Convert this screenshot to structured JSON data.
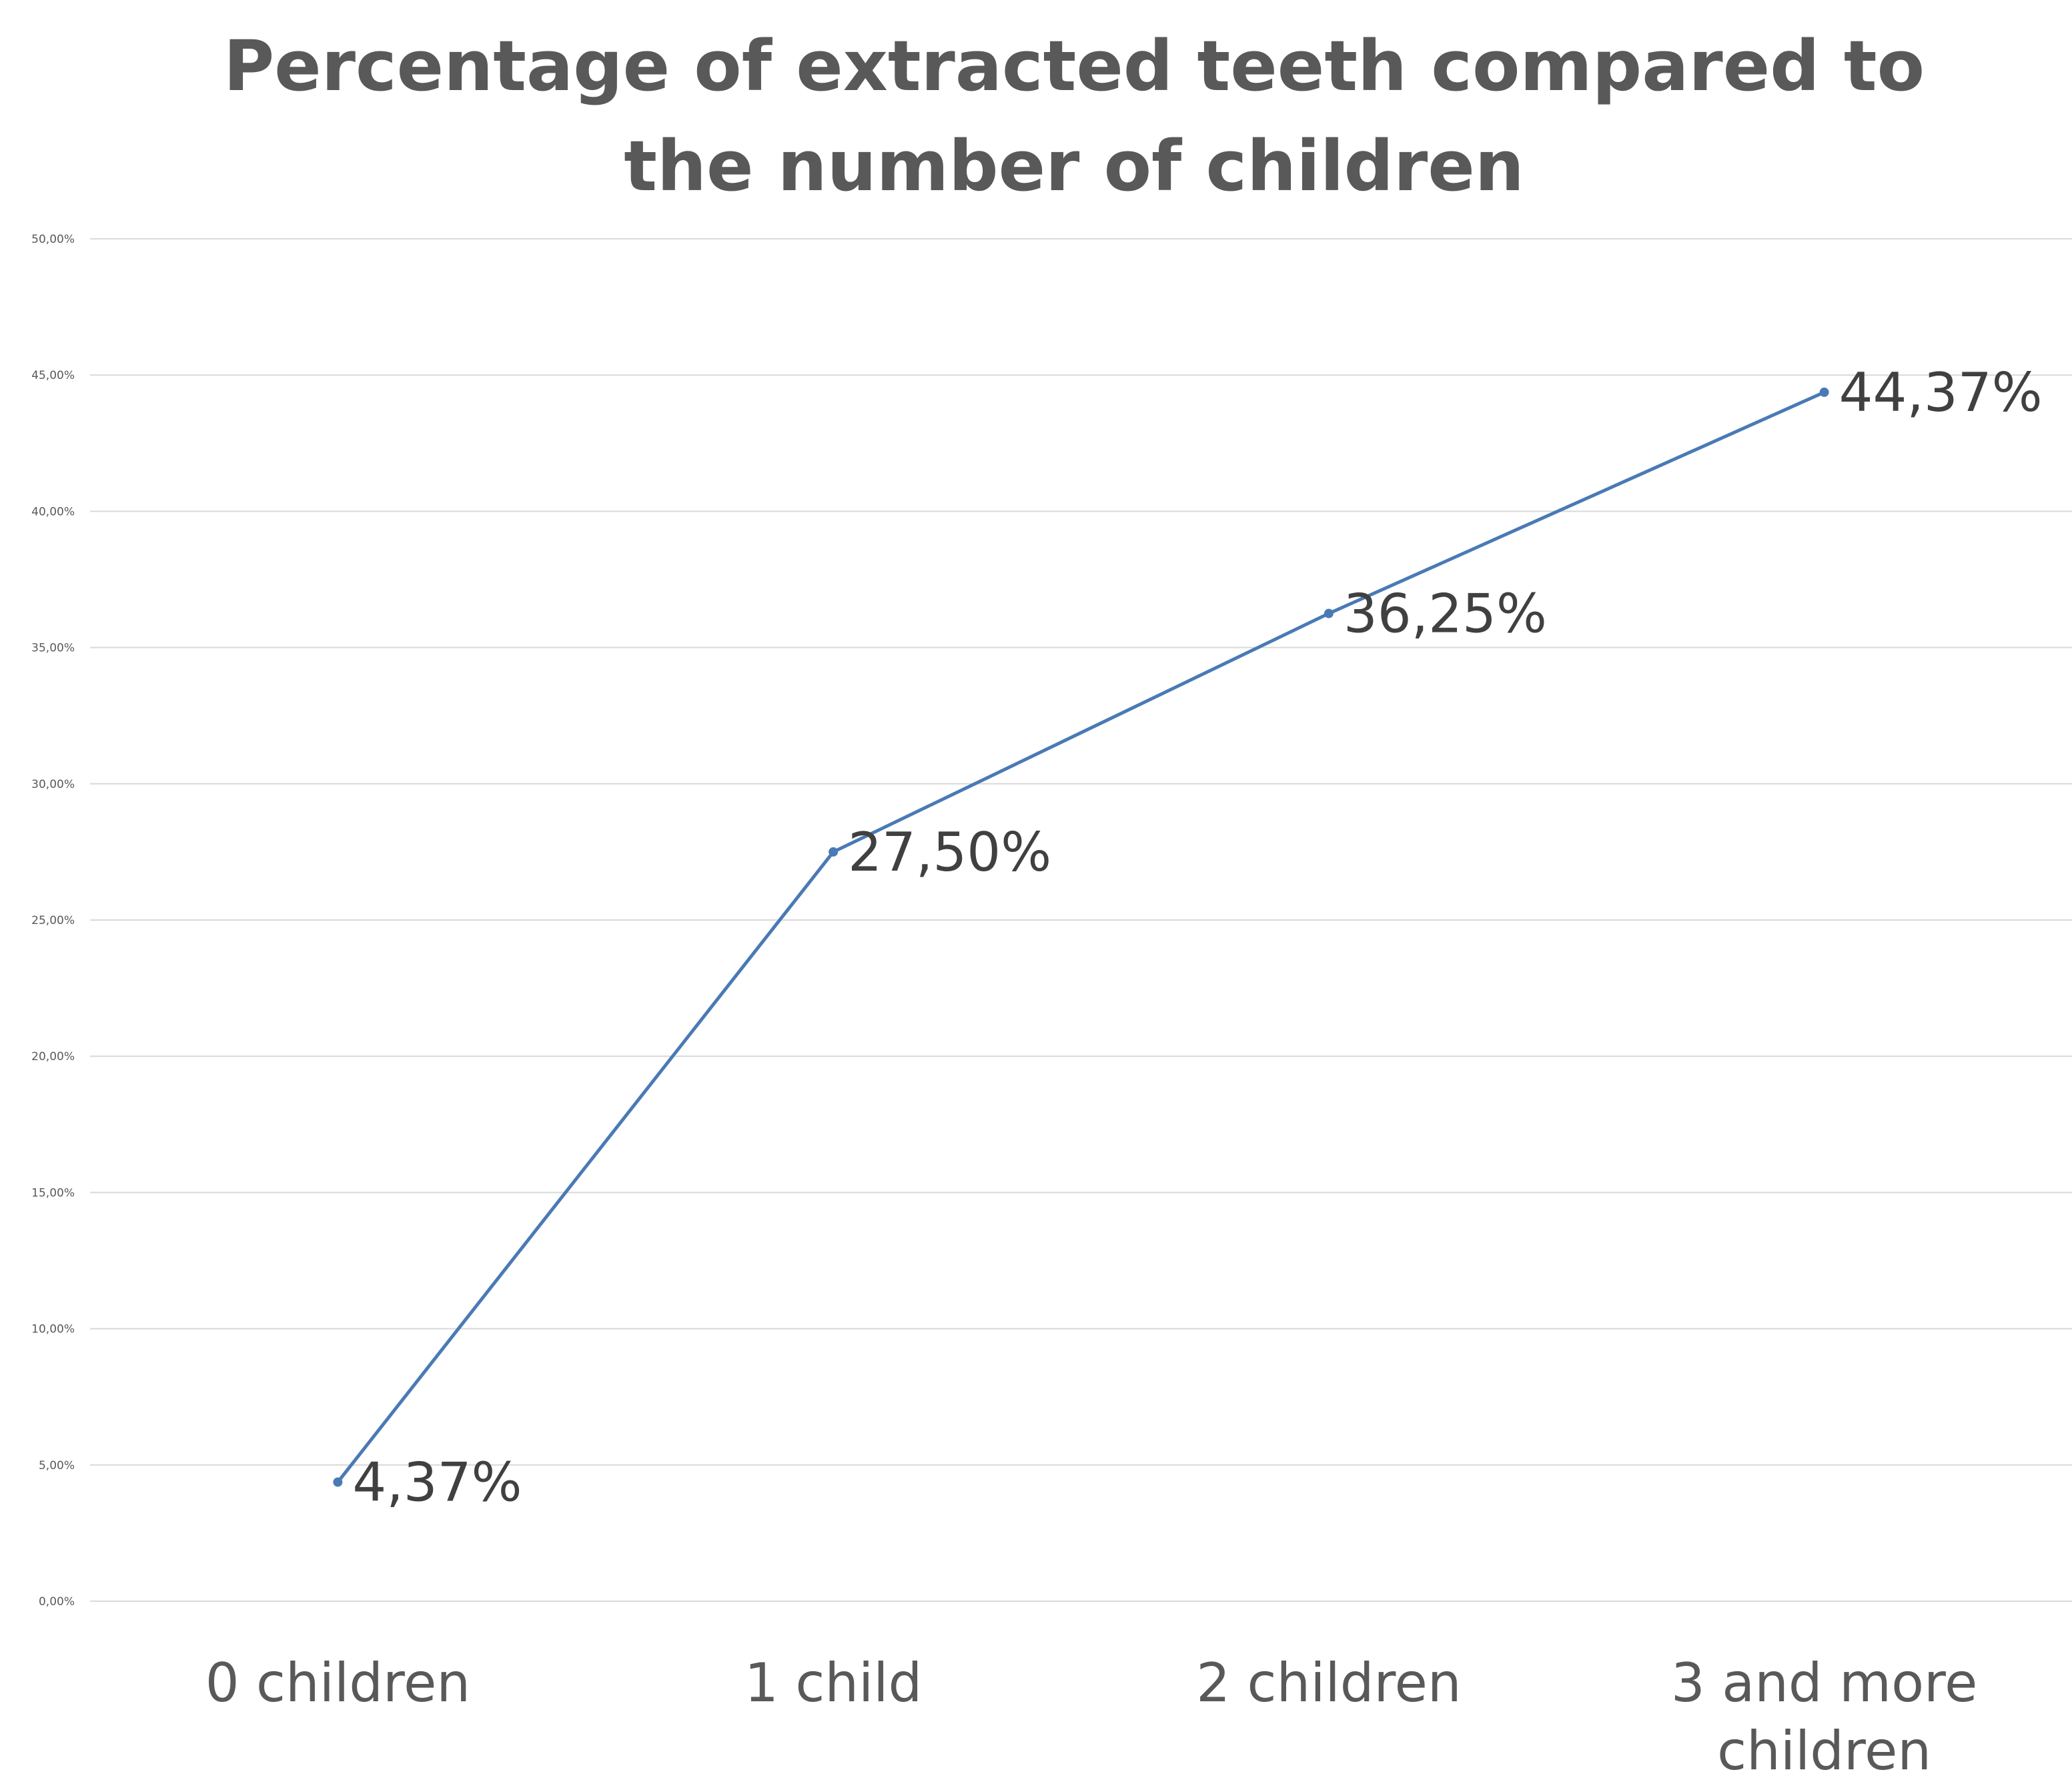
{
  "chart_data": {
    "type": "line",
    "title": "Percentage of extracted teeth compared to the number of children",
    "xlabel": "",
    "ylabel": "",
    "categories": [
      [
        "0 children"
      ],
      [
        "1 child"
      ],
      [
        "2 children"
      ],
      [
        "3 and more",
        "children"
      ]
    ],
    "series": [
      {
        "values": [
          4.37,
          27.5,
          36.25,
          44.37
        ],
        "data_labels": [
          "4,37%",
          "27,50%",
          "36,25%",
          "44,37%"
        ],
        "color": "#4a7ab5"
      }
    ],
    "ylim": [
      0,
      50
    ],
    "y_ticks": [
      0,
      5,
      10,
      15,
      20,
      25,
      30,
      35,
      40,
      45,
      50
    ],
    "y_tick_labels": [
      "0,00%",
      "5,00%",
      "10,00%",
      "15,00%",
      "20,00%",
      "25,00%",
      "30,00%",
      "35,00%",
      "40,00%",
      "45,00%",
      "50,00%"
    ],
    "grid": true,
    "legend": "none",
    "colors": {
      "gridline": "#d9d9d9",
      "tick_text": "#595959",
      "category_text": "#595959",
      "data_label_text": "#404040",
      "title_text": "#595959"
    }
  }
}
